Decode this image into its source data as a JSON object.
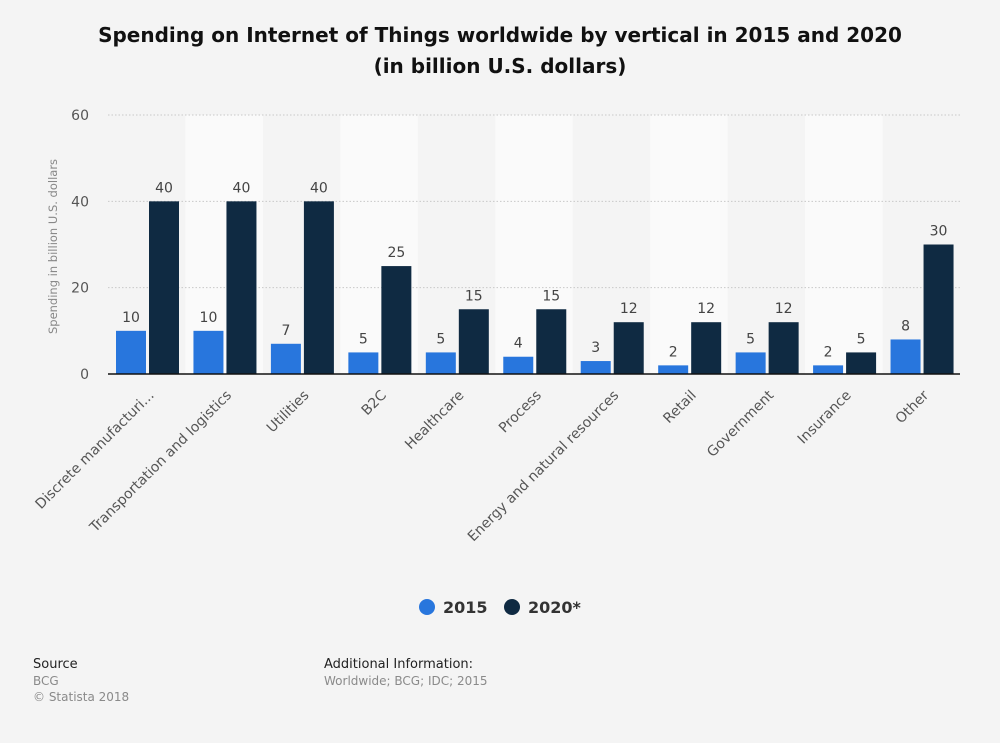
{
  "chart_data": {
    "type": "bar",
    "title_line1": "Spending on Internet of Things worldwide by vertical in 2015 and 2020",
    "title_line2": "(in billion U.S. dollars)",
    "xlabel": "",
    "ylabel": "Spending in billion U.S. dollars",
    "ylim": [
      0,
      60
    ],
    "yticks": [
      0,
      20,
      40,
      60
    ],
    "grid": true,
    "legend_position": "bottom-center",
    "categories": [
      "Discrete manufacturi...",
      "Transportation and logistics",
      "Utilities",
      "B2C",
      "Healthcare",
      "Process",
      "Energy and natural resources",
      "Retail",
      "Government",
      "Insurance",
      "Other"
    ],
    "series": [
      {
        "name": "2015",
        "color": "#2876dd",
        "values": [
          10,
          10,
          7,
          5,
          5,
          4,
          3,
          2,
          5,
          2,
          8
        ]
      },
      {
        "name": "2020*",
        "color": "#0f2a42",
        "values": [
          40,
          40,
          40,
          25,
          15,
          15,
          12,
          12,
          12,
          5,
          30
        ]
      }
    ]
  },
  "footer": {
    "source_label": "Source",
    "source_value": "BCG",
    "copyright": "© Statista 2018",
    "additional_label": "Additional Information:",
    "additional_value": "Worldwide; BCG; IDC; 2015"
  }
}
